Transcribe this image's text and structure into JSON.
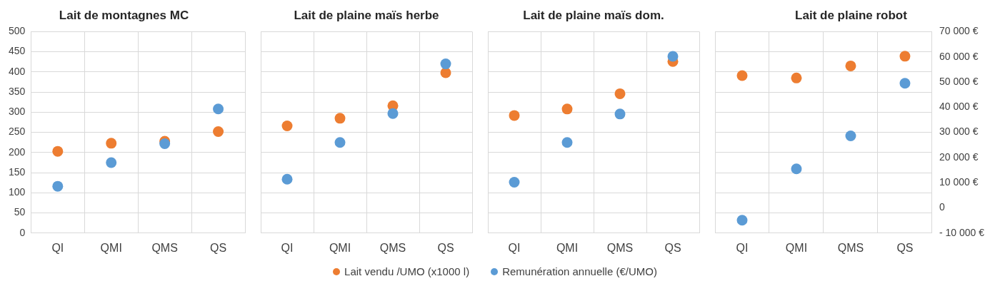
{
  "chart_data": [
    {
      "type": "scatter",
      "title": "Lait de montagnes MC",
      "categories": [
        "QI",
        "QMI",
        "QMS",
        "QS"
      ],
      "ylim": [
        0,
        500
      ],
      "yticks": [
        0,
        50,
        100,
        150,
        200,
        250,
        300,
        350,
        400,
        450,
        500
      ],
      "y2lim": [
        -10000,
        70000
      ],
      "tick_labels": "xy",
      "grid": true,
      "marker": "circle",
      "legend": "bottom",
      "series": [
        {
          "name": "Lait vendu /UMO (x1000 l)",
          "color": "#ed7d31",
          "values": [
            203,
            223,
            228,
            252
          ]
        },
        {
          "name": "Remunération annuelle (€/UMO)",
          "color": "#5b9bd5",
          "axis": "y2",
          "values": [
            8600,
            18000,
            25500,
            39300
          ]
        }
      ]
    },
    {
      "type": "scatter",
      "title": "Lait de plaine maïs herbe",
      "categories": [
        "QI",
        "QMI",
        "QMS",
        "QS"
      ],
      "ylim": [
        0,
        500
      ],
      "y2lim": [
        -10000,
        70000
      ],
      "tick_labels": "x",
      "grid": true,
      "marker": "circle",
      "series": [
        {
          "color": "#ed7d31",
          "values": [
            266,
            285,
            316,
            398
          ]
        },
        {
          "color": "#5b9bd5",
          "axis": "y2",
          "values": [
            11400,
            26000,
            37500,
            57200
          ]
        }
      ]
    },
    {
      "type": "scatter",
      "title": "Lait de plaine maïs dom.",
      "categories": [
        "QI",
        "QMI",
        "QMS",
        "QS"
      ],
      "ylim": [
        0,
        500
      ],
      "y2lim": [
        -10000,
        70000
      ],
      "tick_labels": "x",
      "grid": true,
      "marker": "circle",
      "series": [
        {
          "color": "#ed7d31",
          "values": [
            292,
            308,
            346,
            426
          ]
        },
        {
          "color": "#5b9bd5",
          "axis": "y2",
          "values": [
            10200,
            26000,
            37300,
            60200
          ]
        }
      ]
    },
    {
      "type": "scatter",
      "title": "Lait de plaine robot",
      "categories": [
        "QI",
        "QMI",
        "QMS",
        "QS"
      ],
      "ylim": [
        0,
        500
      ],
      "y2lim": [
        -10000,
        70000
      ],
      "y2ticks": [
        {
          "value": -10000,
          "label": "- 10 000 €"
        },
        {
          "value": 0,
          "label": "0"
        },
        {
          "value": 10000,
          "label": "10 000 €"
        },
        {
          "value": 20000,
          "label": "20 000 €"
        },
        {
          "value": 30000,
          "label": "30 000 €"
        },
        {
          "value": 40000,
          "label": "40 000 €"
        },
        {
          "value": 50000,
          "label": "50 000 €"
        },
        {
          "value": 60000,
          "label": "60 000 €"
        },
        {
          "value": 70000,
          "label": "70 000 €"
        }
      ],
      "tick_labels": "xy2",
      "grid": true,
      "marker": "circle",
      "series": [
        {
          "color": "#ed7d31",
          "values": [
            391,
            385,
            415,
            439
          ]
        },
        {
          "color": "#5b9bd5",
          "axis": "y2",
          "values": [
            -4900,
            15500,
            28600,
            49500
          ]
        }
      ]
    }
  ]
}
